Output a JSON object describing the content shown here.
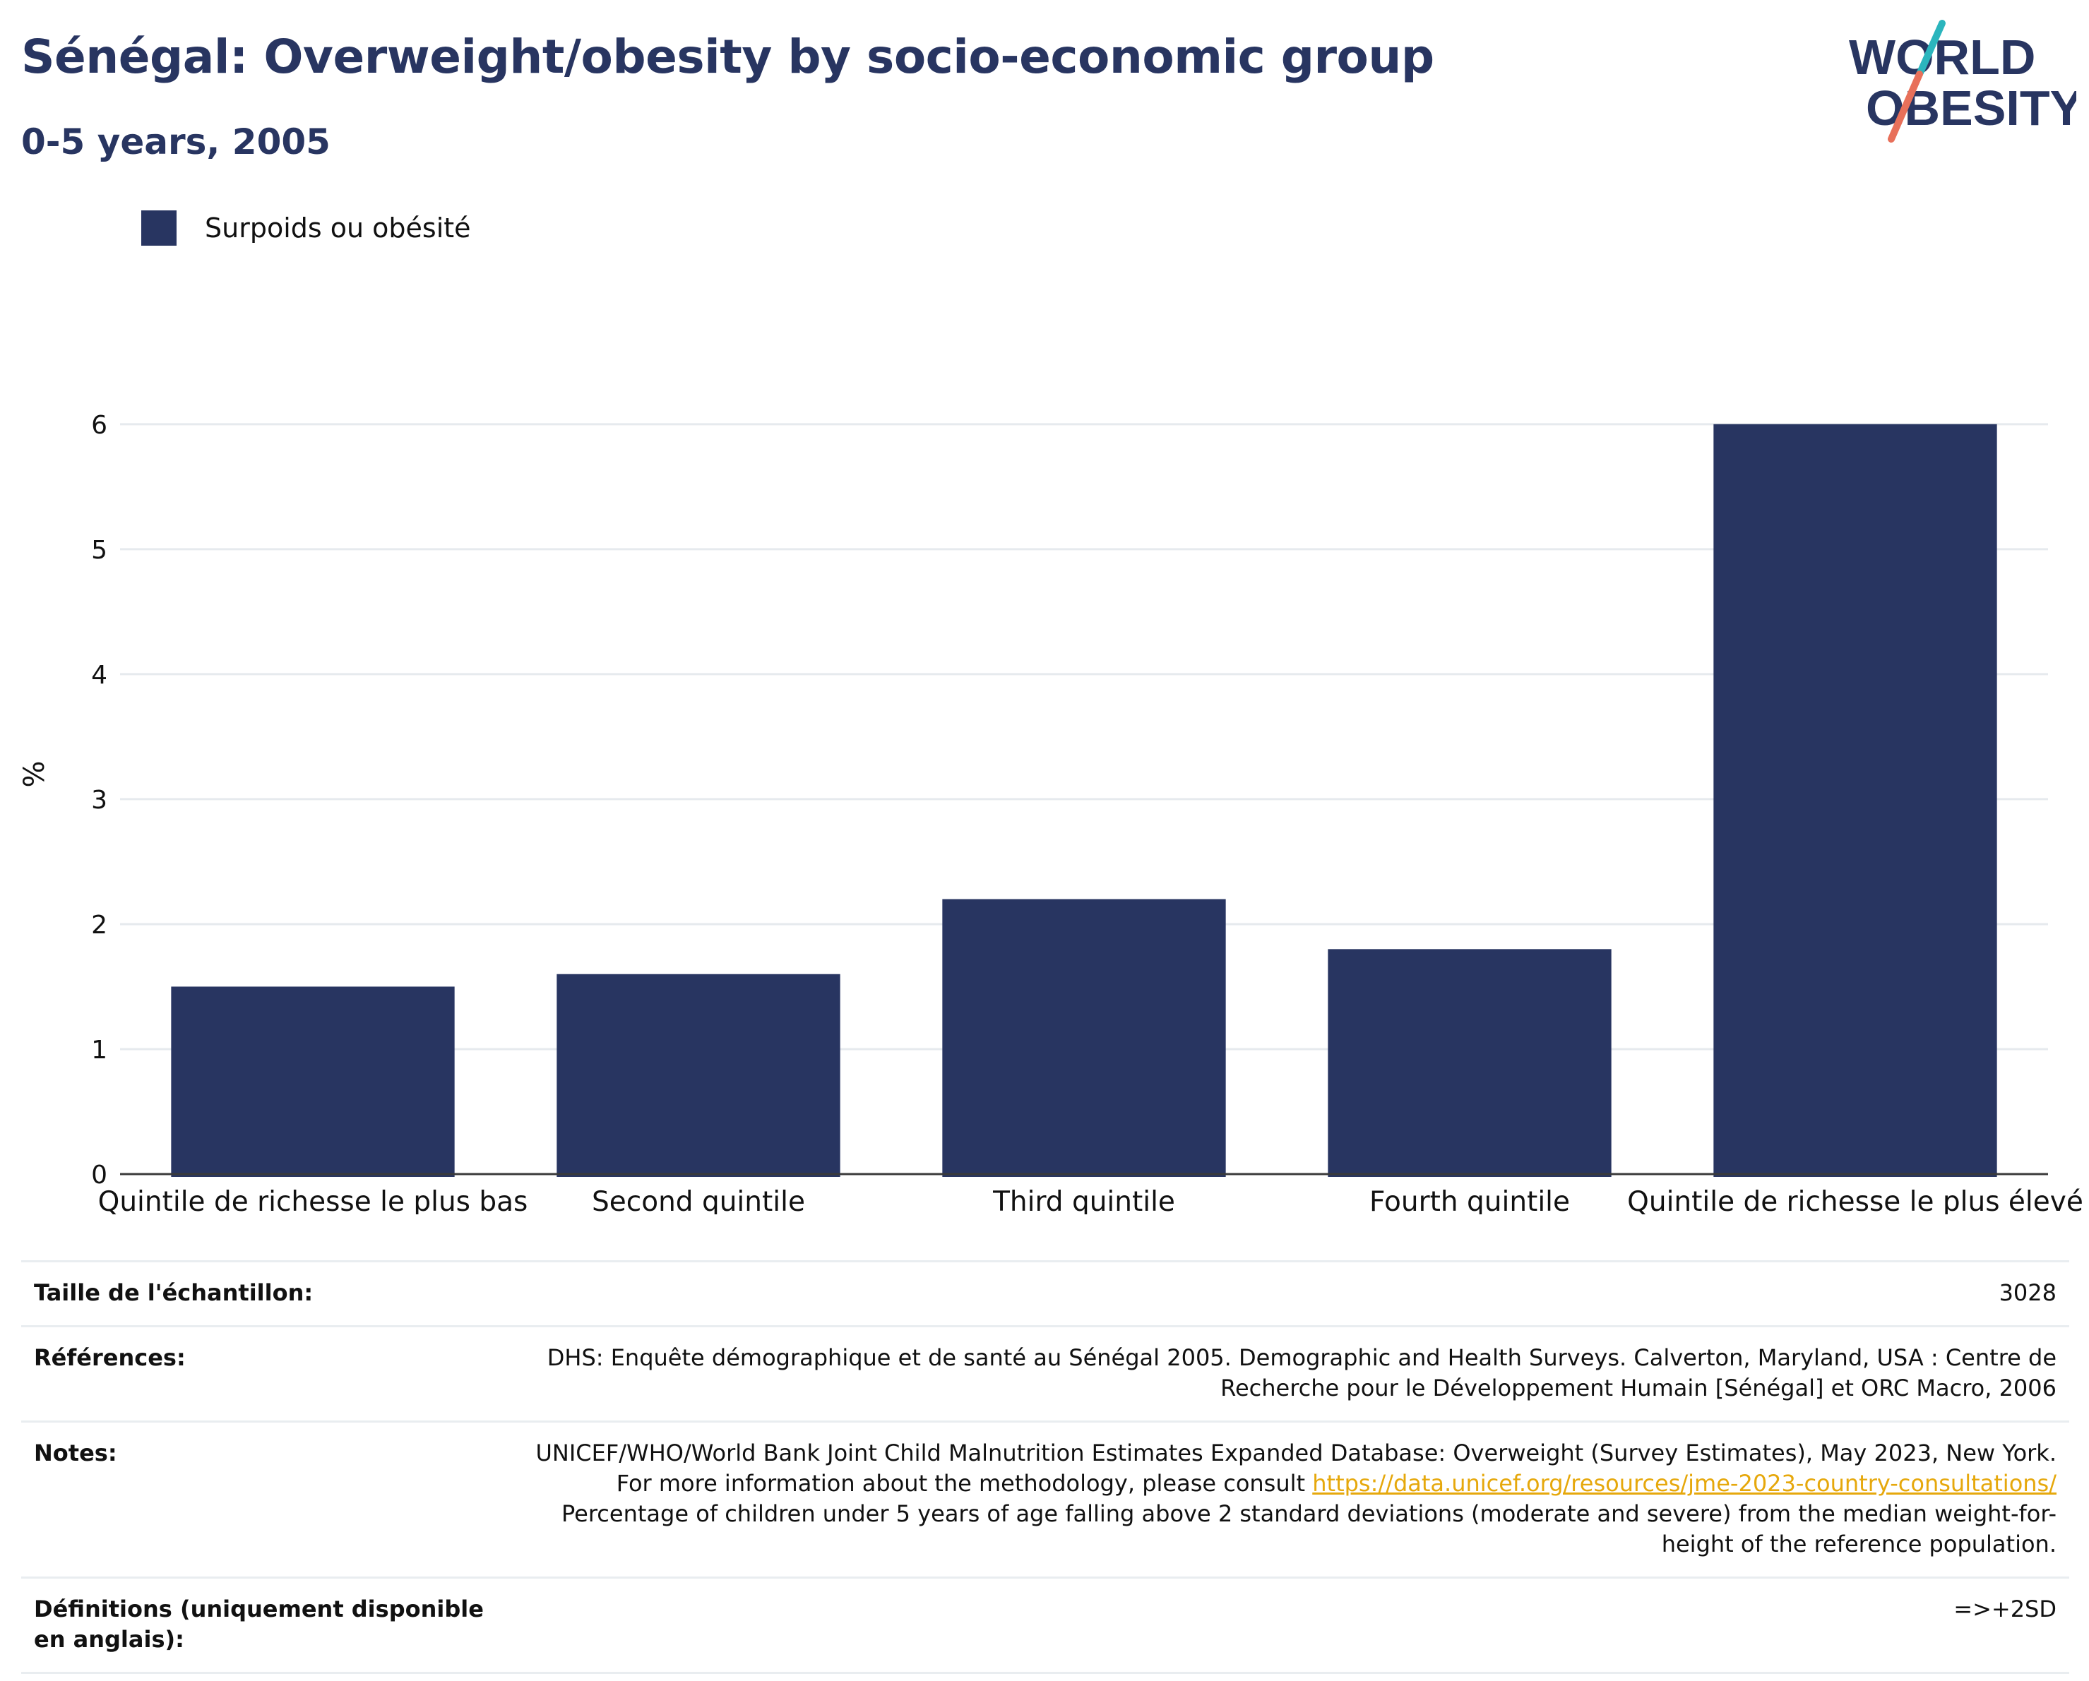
{
  "header": {
    "title": "Sénégal: Overweight/obesity by socio-economic group",
    "subtitle": "0-5 years, 2005"
  },
  "logo": {
    "line1": "WORLD",
    "line2": "OBESITY",
    "colors": {
      "navy": "#283561",
      "teal": "#2bb5bd",
      "coral": "#e8705a"
    }
  },
  "legend": {
    "label": "Surpoids ou obésité",
    "color": "#283561"
  },
  "chart_data": {
    "type": "bar",
    "categories": [
      "Quintile de richesse le plus bas",
      "Second quintile",
      "Third quintile",
      "Fourth quintile",
      "Quintile de richesse le plus élevé"
    ],
    "series": [
      {
        "name": "Surpoids ou obésité",
        "values": [
          1.5,
          1.6,
          2.2,
          1.8,
          6.0
        ]
      }
    ],
    "title": "",
    "xlabel": "",
    "ylabel": "%",
    "ylim": [
      0,
      6.4
    ],
    "yticks": [
      0,
      1,
      2,
      3,
      4,
      5,
      6
    ],
    "grid": true,
    "legend_position": "top-left",
    "bar_color": "#283561",
    "grid_color": "#e6eaee",
    "axis_color": "#3a3a3a"
  },
  "info": {
    "rows": [
      {
        "label": "Taille de l'échantillon:",
        "value": "3028"
      },
      {
        "label": "Références:",
        "value": "DHS: Enquête démographique et de santé au Sénégal 2005. Demographic and Health Surveys. Calverton, Maryland, USA : Centre de Recherche pour le Développement Humain [Sénégal] et ORC Macro, 2006"
      },
      {
        "label": "Définitions (uniquement disponible en anglais):",
        "value": "=>+2SD"
      }
    ],
    "notes": {
      "label": "Notes:",
      "text_before_link": "UNICEF/WHO/World Bank Joint Child Malnutrition Estimates Expanded Database: Overweight (Survey Estimates), May 2023, New York. For more information about the methodology, please consult ",
      "link": "https://data.unicef.org/resources/jme-2023-country-consultations/",
      "text_after_link": " Percentage of children under 5 years of age falling above 2 standard deviations (moderate and severe) from the median weight-for-height of the reference population."
    }
  }
}
